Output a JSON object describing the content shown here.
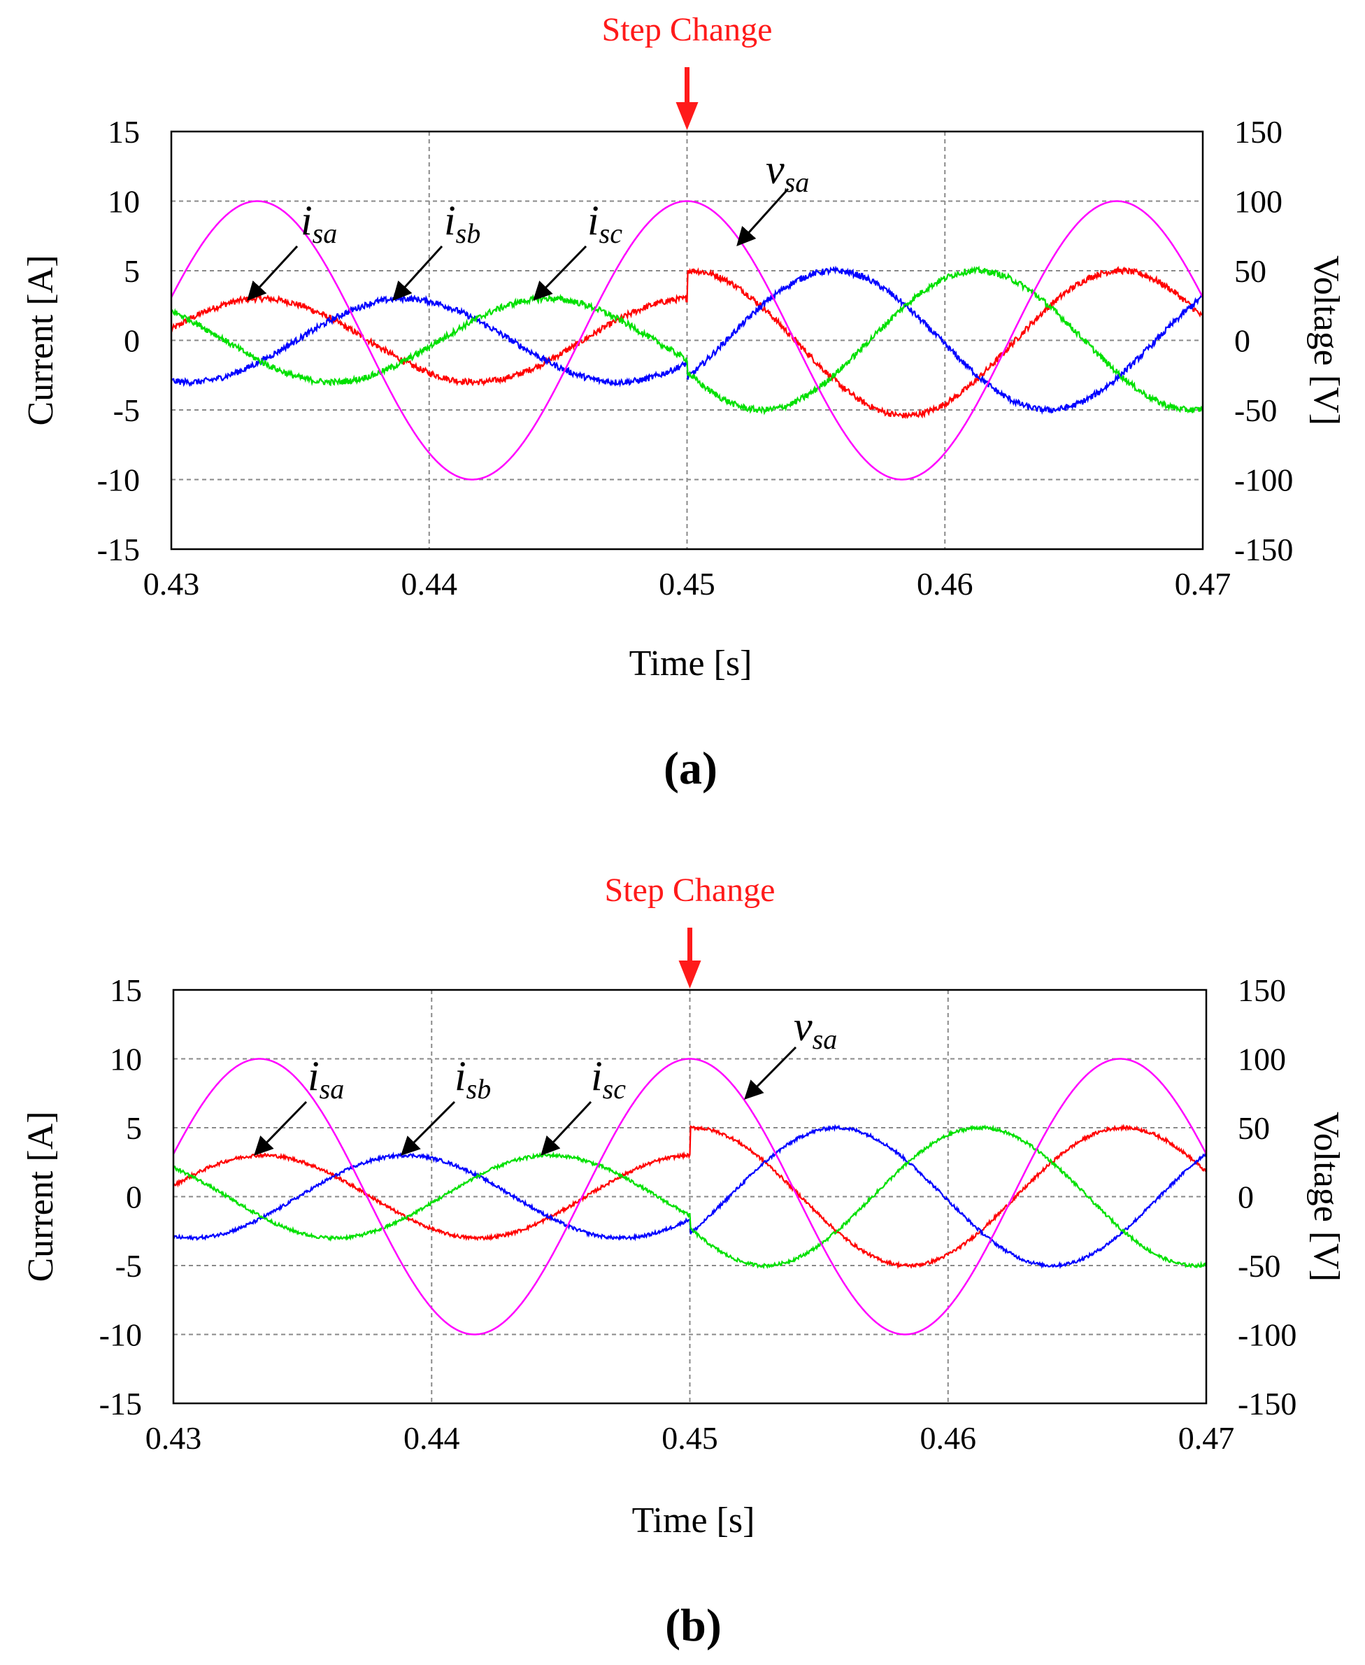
{
  "chart_data": [
    {
      "type": "line",
      "panel_label": "(a)",
      "annotation": "Step Change",
      "step_time": 0.45,
      "xlabel": "Time [s]",
      "ylabel": "Current [A]",
      "y2label": "Voltage [V]",
      "xlim": [
        0.43,
        0.47
      ],
      "ylim": [
        -15,
        15
      ],
      "y2lim": [
        -150,
        150
      ],
      "xticks": [
        "0.43",
        "0.44",
        "0.45",
        "0.46",
        "0.47"
      ],
      "yticks": [
        "15",
        "10",
        "5",
        "0",
        "-5",
        "-10",
        "-15"
      ],
      "y2ticks": [
        "150",
        "100",
        "50",
        "0",
        "-50",
        "-100",
        "-150"
      ],
      "grid": true,
      "frequency_hz": 60,
      "series": [
        {
          "name": "v_sa",
          "label_main": "v",
          "label_sub": "sa",
          "axis": "right",
          "color": "#ff00ff",
          "amp_before": 100,
          "amp_after": 100,
          "phase_deg": 0,
          "noise": 0,
          "offset_after": 0
        },
        {
          "name": "i_sa",
          "label_main": "i",
          "label_sub": "sa",
          "axis": "left",
          "color": "#ff0000",
          "amp_before": 3,
          "amp_after": 5.2,
          "phase_deg": 0,
          "noise": 0.22,
          "offset_after": -0.2
        },
        {
          "name": "i_sb",
          "label_main": "i",
          "label_sub": "sb",
          "axis": "left",
          "color": "#0000ff",
          "amp_before": 3,
          "amp_after": 5,
          "phase_deg": -120,
          "noise": 0.22,
          "offset_after": 0
        },
        {
          "name": "i_sc",
          "label_main": "i",
          "label_sub": "sc",
          "axis": "left",
          "color": "#00e000",
          "amp_before": 3,
          "amp_after": 5,
          "phase_deg": 120,
          "noise": 0.22,
          "offset_after": 0
        }
      ]
    },
    {
      "type": "line",
      "panel_label": "(b)",
      "annotation": "Step Change",
      "step_time": 0.45,
      "xlabel": "Time [s]",
      "ylabel": "Current [A]",
      "y2label": "Voltage [V]",
      "xlim": [
        0.43,
        0.47
      ],
      "ylim": [
        -15,
        15
      ],
      "y2lim": [
        -150,
        150
      ],
      "xticks": [
        "0.43",
        "0.44",
        "0.45",
        "0.46",
        "0.47"
      ],
      "yticks": [
        "15",
        "10",
        "5",
        "0",
        "-5",
        "-10",
        "-15"
      ],
      "y2ticks": [
        "150",
        "100",
        "50",
        "0",
        "-50",
        "-100",
        "-150"
      ],
      "grid": true,
      "frequency_hz": 60,
      "series": [
        {
          "name": "v_sa",
          "label_main": "v",
          "label_sub": "sa",
          "axis": "right",
          "color": "#ff00ff",
          "amp_before": 100,
          "amp_after": 100,
          "phase_deg": 0,
          "noise": 0,
          "offset_after": 0
        },
        {
          "name": "i_sa",
          "label_main": "i",
          "label_sub": "sa",
          "axis": "left",
          "color": "#ff0000",
          "amp_before": 3,
          "amp_after": 5,
          "phase_deg": 0,
          "noise": 0.12,
          "offset_after": 0
        },
        {
          "name": "i_sb",
          "label_main": "i",
          "label_sub": "sb",
          "axis": "left",
          "color": "#0000ff",
          "amp_before": 3,
          "amp_after": 5,
          "phase_deg": -120,
          "noise": 0.12,
          "offset_after": 0
        },
        {
          "name": "i_sc",
          "label_main": "i",
          "label_sub": "sc",
          "axis": "left",
          "color": "#00e000",
          "amp_before": 3,
          "amp_after": 5,
          "phase_deg": 120,
          "noise": 0.12,
          "offset_after": 0
        }
      ]
    }
  ]
}
